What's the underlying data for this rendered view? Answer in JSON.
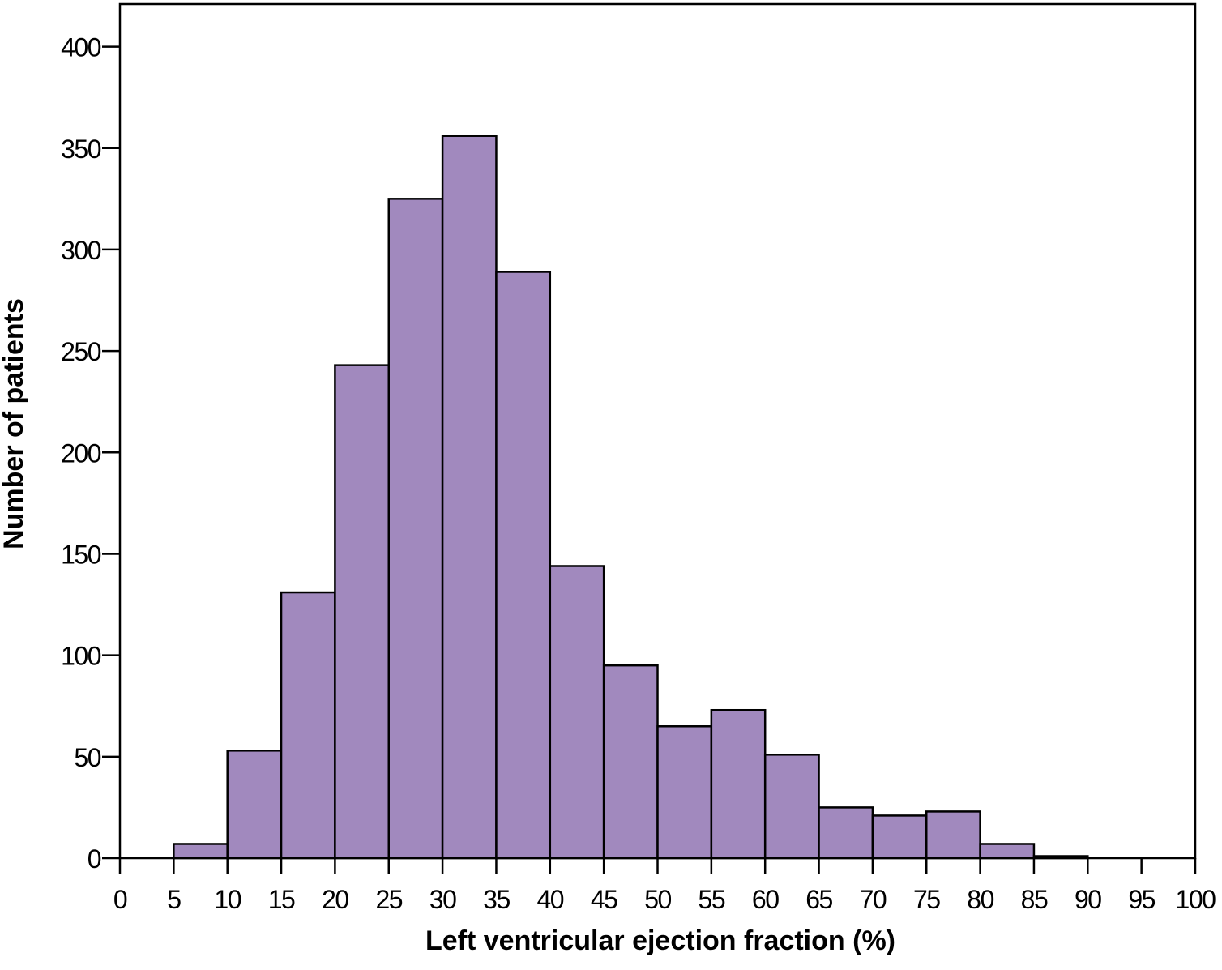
{
  "chart_data": {
    "type": "histogram",
    "x_label": "Left ventricular ejection fraction (%)",
    "y_label": "Number of patients",
    "bins": [
      5,
      10,
      15,
      20,
      25,
      30,
      35,
      40,
      45,
      50,
      55,
      60,
      65,
      70,
      75,
      80,
      85,
      90
    ],
    "values": [
      7,
      53,
      131,
      243,
      325,
      356,
      289,
      144,
      95,
      65,
      73,
      51,
      25,
      21,
      23,
      7,
      1
    ],
    "color": "#a189be",
    "xlim": [
      0,
      100
    ],
    "xticks": [
      0,
      5,
      10,
      15,
      20,
      25,
      30,
      35,
      40,
      45,
      50,
      55,
      60,
      65,
      70,
      75,
      80,
      85,
      90,
      95,
      100
    ],
    "ylim": [
      0,
      421
    ],
    "yticks": [
      0,
      50,
      100,
      150,
      200,
      250,
      300,
      350,
      400
    ]
  }
}
